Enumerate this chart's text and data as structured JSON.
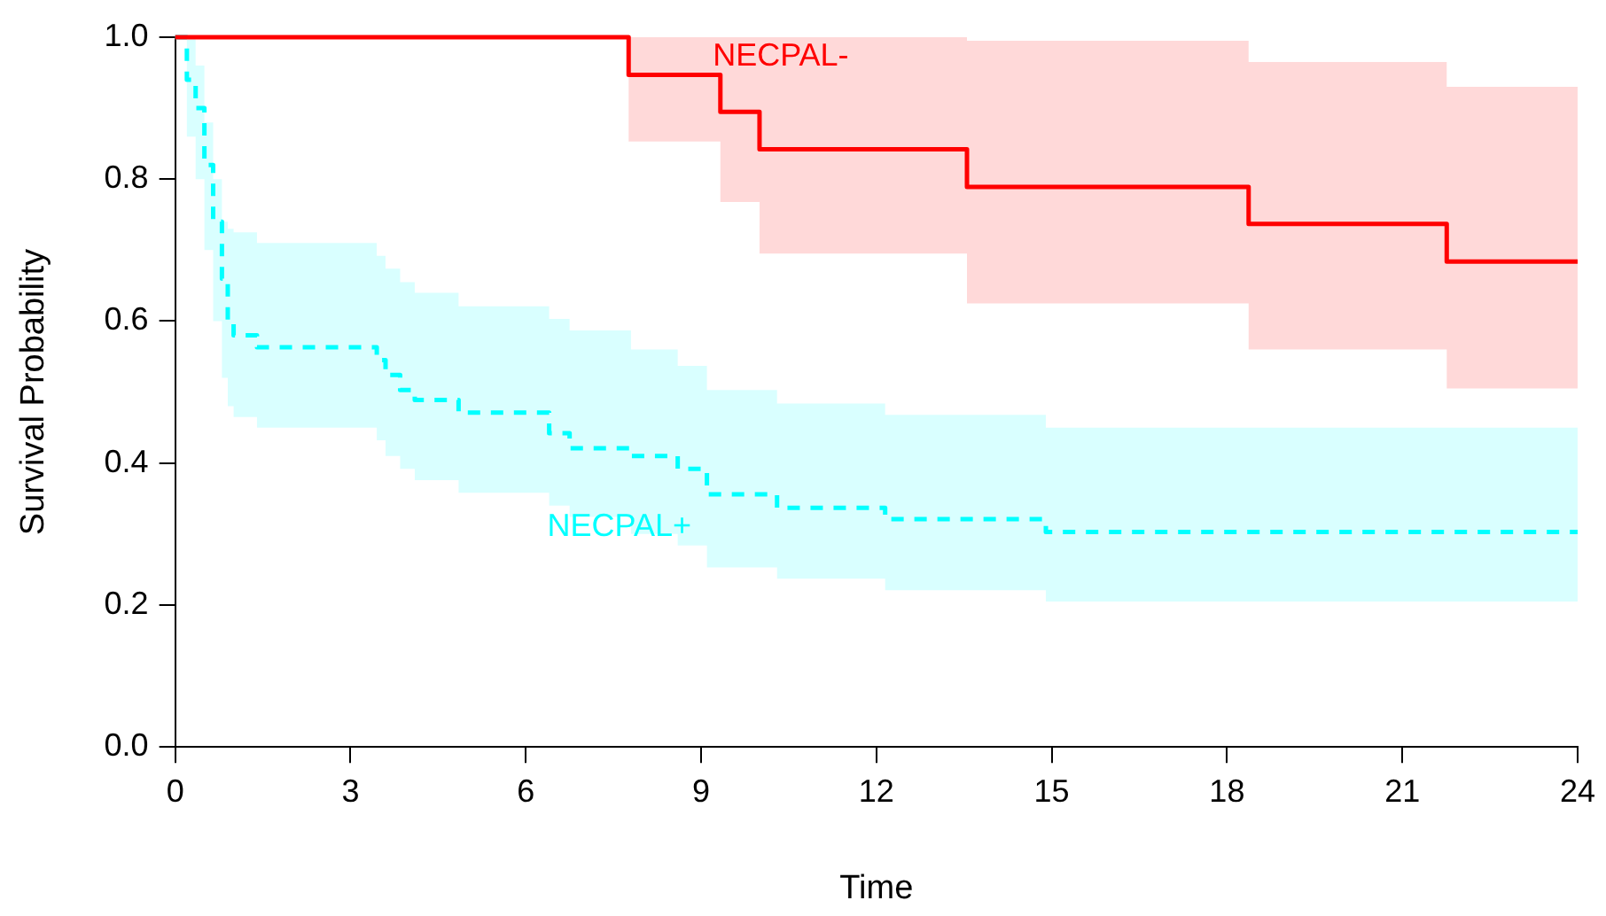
{
  "chart_data": {
    "type": "step",
    "xlabel": "Time",
    "ylabel": "Survival Probability",
    "xlim": [
      0,
      24
    ],
    "xticks": [
      0,
      3,
      6,
      9,
      12,
      15,
      18,
      21,
      24
    ],
    "ylim": [
      0,
      1
    ],
    "yticks": [
      {
        "value": 0,
        "label": "0.0"
      },
      0.2,
      0.4,
      0.6,
      0.8,
      {
        "value": 1,
        "label": "1.0"
      }
    ],
    "legend": false,
    "series": [
      {
        "name": "NECPAL-",
        "color": "#ff0000",
        "line_style": "solid",
        "x": [
          0,
          7.76,
          9.33,
          10.0,
          13.55,
          18.37,
          21.76,
          24
        ],
        "values": [
          1,
          0.947,
          0.895,
          0.842,
          0.789,
          0.737,
          0.684,
          0.684
        ],
        "lower": [
          1,
          0.853,
          0.768,
          0.695,
          0.625,
          0.56,
          0.505,
          0.505
        ],
        "upper": [
          1,
          1,
          1,
          1,
          0.995,
          0.965,
          0.93,
          0.93
        ]
      },
      {
        "name": "NECPAL+",
        "color": "#00ffff",
        "line_style": "dashed",
        "x": [
          0,
          0.2,
          0.35,
          0.5,
          0.65,
          0.8,
          0.9,
          1.0,
          1.4,
          3.45,
          3.6,
          3.85,
          4.1,
          4.85,
          6.4,
          6.75,
          7.8,
          8.6,
          9.1,
          10.3,
          12.15,
          14.9,
          24
        ],
        "values": [
          1,
          0.94,
          0.9,
          0.82,
          0.74,
          0.66,
          0.6,
          0.58,
          0.563,
          0.545,
          0.524,
          0.503,
          0.489,
          0.471,
          0.442,
          0.421,
          0.41,
          0.392,
          0.356,
          0.337,
          0.321,
          0.303,
          0.303
        ],
        "lower": [
          1,
          0.86,
          0.8,
          0.7,
          0.6,
          0.52,
          0.48,
          0.465,
          0.45,
          0.432,
          0.41,
          0.392,
          0.376,
          0.358,
          0.34,
          0.324,
          0.3,
          0.284,
          0.253,
          0.237,
          0.221,
          0.205,
          0.205
        ],
        "upper": [
          1,
          1,
          0.96,
          0.88,
          0.8,
          0.74,
          0.73,
          0.725,
          0.71,
          0.692,
          0.674,
          0.655,
          0.64,
          0.621,
          0.603,
          0.587,
          0.56,
          0.537,
          0.503,
          0.484,
          0.468,
          0.45,
          0.45
        ]
      }
    ]
  }
}
